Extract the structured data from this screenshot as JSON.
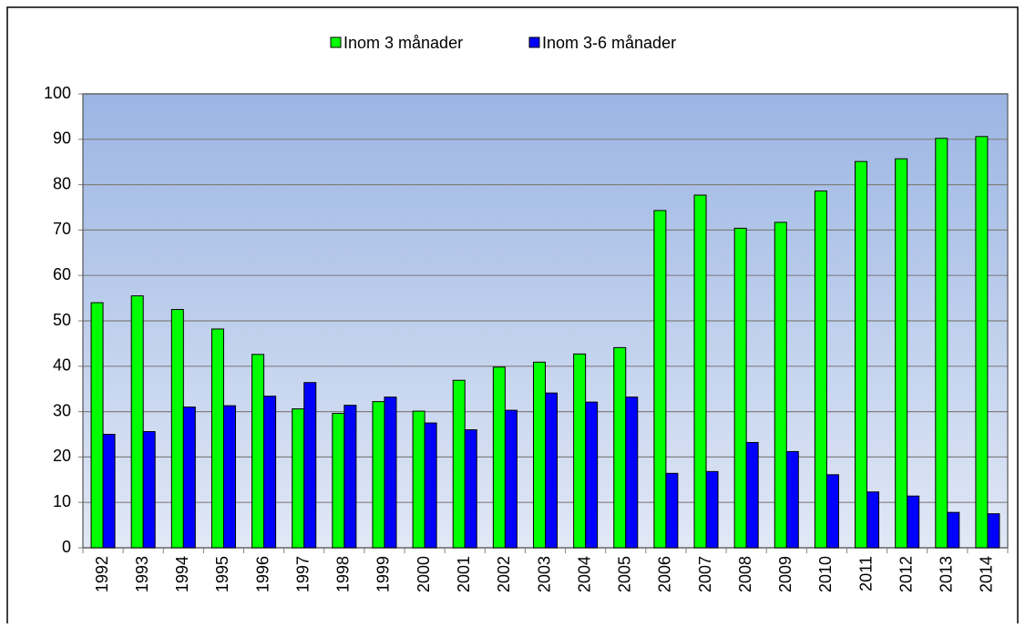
{
  "chart_data": {
    "type": "bar",
    "categories": [
      "1992",
      "1993",
      "1994",
      "1995",
      "1996",
      "1997",
      "1998",
      "1999",
      "2000",
      "2001",
      "2002",
      "2003",
      "2004",
      "2005",
      "2006",
      "2007",
      "2008",
      "2009",
      "2010",
      "2011",
      "2012",
      "2013",
      "2014"
    ],
    "series": [
      {
        "name": "Inom 3 månader",
        "color": "#00ff00",
        "values": [
          54,
          55.5,
          52.5,
          48.2,
          42.6,
          30.6,
          29.6,
          32.2,
          30.1,
          36.9,
          39.8,
          40.9,
          42.7,
          44.1,
          74.3,
          77.7,
          70.4,
          71.7,
          78.6,
          85.1,
          85.7,
          90.2,
          90.6
        ]
      },
      {
        "name": "Inom 3-6 månader",
        "color": "#0000ff",
        "values": [
          25.0,
          25.6,
          31.0,
          31.3,
          33.4,
          36.4,
          31.4,
          33.2,
          27.5,
          26.0,
          30.3,
          34.1,
          32.1,
          33.2,
          16.4,
          16.8,
          23.2,
          21.2,
          16.1,
          12.3,
          11.4,
          7.8,
          7.5
        ]
      }
    ],
    "ylim": [
      0,
      100
    ],
    "yticks": [
      0,
      10,
      20,
      30,
      40,
      50,
      60,
      70,
      80,
      90,
      100
    ],
    "grid": true,
    "legend": "top"
  }
}
